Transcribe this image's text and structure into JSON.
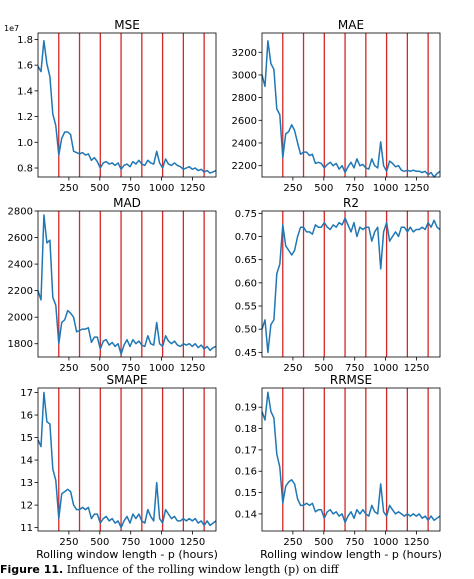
{
  "figure": {
    "top_partial_text": "",
    "caption_label": "Figure 11.",
    "caption_text": " Influence of the rolling window length (p) on diff"
  },
  "chart_data": [
    {
      "type": "line",
      "title": "MSE",
      "xlabel": "",
      "ylabel": "",
      "offset_text": "1e7",
      "y_scale": 10000000,
      "xlim": [
        0,
        1440
      ],
      "ylim": [
        7300000,
        18500000
      ],
      "x_ticks": [
        250,
        500,
        750,
        1000,
        1250
      ],
      "y_ticks": [
        8000000,
        10000000,
        12000000,
        14000000,
        16000000,
        18000000
      ],
      "y_tick_labels": [
        "0.8",
        "1.0",
        "1.2",
        "1.4",
        "1.6",
        "1.8"
      ],
      "vlines": [
        168,
        336,
        504,
        672,
        840,
        1008,
        1176,
        1344
      ],
      "series": [
        {
          "x": [
            0,
            24,
            48,
            72,
            96,
            120,
            144,
            168,
            192,
            216,
            240,
            264,
            288,
            312,
            336,
            360,
            384,
            408,
            432,
            456,
            480,
            504,
            528,
            552,
            576,
            600,
            624,
            648,
            672,
            696,
            720,
            744,
            768,
            792,
            816,
            840,
            864,
            888,
            912,
            936,
            960,
            984,
            1008,
            1032,
            1056,
            1080,
            1104,
            1128,
            1152,
            1176,
            1200,
            1224,
            1248,
            1272,
            1296,
            1320,
            1344,
            1368,
            1392,
            1416,
            1440
          ],
          "y": [
            15900000,
            15500000,
            17900000,
            16100000,
            15100000,
            12200000,
            11300000,
            9000000,
            10300000,
            10800000,
            10800000,
            10600000,
            9300000,
            9200000,
            9100000,
            9200000,
            9000000,
            9100000,
            8600000,
            8800000,
            8500000,
            8000000,
            8400000,
            8500000,
            8300000,
            8400000,
            8200000,
            8400000,
            7900000,
            8200000,
            8300000,
            8100000,
            8500000,
            8300000,
            8600000,
            8300000,
            8200000,
            8600000,
            8400000,
            8300000,
            9300000,
            8400000,
            8000000,
            8700000,
            8300000,
            8200000,
            8400000,
            8200000,
            8100000,
            7900000,
            8000000,
            8100000,
            7900000,
            8000000,
            7800000,
            7900000,
            7700000,
            7800000,
            7600000,
            7700000,
            7800000
          ]
        }
      ]
    },
    {
      "type": "line",
      "title": "MAE",
      "xlabel": "",
      "ylabel": "",
      "xlim": [
        0,
        1440
      ],
      "ylim": [
        2100,
        3370
      ],
      "x_ticks": [
        250,
        500,
        750,
        1000,
        1250
      ],
      "y_ticks": [
        2200,
        2400,
        2600,
        2800,
        3000,
        3200
      ],
      "y_tick_labels": [
        "2200",
        "2400",
        "2600",
        "2800",
        "3000",
        "3200"
      ],
      "vlines": [
        168,
        336,
        504,
        672,
        840,
        1008,
        1176,
        1344
      ],
      "series": [
        {
          "x": [
            0,
            24,
            48,
            72,
            96,
            120,
            144,
            168,
            192,
            216,
            240,
            264,
            288,
            312,
            336,
            360,
            384,
            408,
            432,
            456,
            480,
            504,
            528,
            552,
            576,
            600,
            624,
            648,
            672,
            696,
            720,
            744,
            768,
            792,
            816,
            840,
            864,
            888,
            912,
            936,
            960,
            984,
            1008,
            1032,
            1056,
            1080,
            1104,
            1128,
            1152,
            1176,
            1200,
            1224,
            1248,
            1272,
            1296,
            1320,
            1344,
            1368,
            1392,
            1416,
            1440
          ],
          "y": [
            3000,
            2900,
            3300,
            3100,
            3050,
            2700,
            2650,
            2270,
            2480,
            2500,
            2560,
            2510,
            2400,
            2300,
            2320,
            2320,
            2290,
            2300,
            2220,
            2230,
            2220,
            2180,
            2210,
            2230,
            2200,
            2220,
            2170,
            2200,
            2140,
            2190,
            2230,
            2180,
            2260,
            2200,
            2210,
            2180,
            2170,
            2260,
            2200,
            2180,
            2410,
            2200,
            2150,
            2240,
            2220,
            2190,
            2200,
            2160,
            2150,
            2160,
            2150,
            2160,
            2150,
            2150,
            2140,
            2150,
            2120,
            2140,
            2100,
            2130,
            2150
          ]
        }
      ]
    },
    {
      "type": "line",
      "title": "MAD",
      "xlabel": "",
      "ylabel": "",
      "xlim": [
        0,
        1440
      ],
      "ylim": [
        1700,
        2800
      ],
      "x_ticks": [
        250,
        500,
        750,
        1000,
        1250
      ],
      "y_ticks": [
        1800,
        2000,
        2200,
        2400,
        2600,
        2800
      ],
      "y_tick_labels": [
        "1800",
        "2000",
        "2200",
        "2400",
        "2600",
        "2800"
      ],
      "vlines": [
        168,
        336,
        504,
        672,
        840,
        1008,
        1176,
        1344
      ],
      "series": [
        {
          "x": [
            0,
            24,
            48,
            72,
            96,
            120,
            144,
            168,
            192,
            216,
            240,
            264,
            288,
            312,
            336,
            360,
            384,
            408,
            432,
            456,
            480,
            504,
            528,
            552,
            576,
            600,
            624,
            648,
            672,
            696,
            720,
            744,
            768,
            792,
            816,
            840,
            864,
            888,
            912,
            936,
            960,
            984,
            1008,
            1032,
            1056,
            1080,
            1104,
            1128,
            1152,
            1176,
            1200,
            1224,
            1248,
            1272,
            1296,
            1320,
            1344,
            1368,
            1392,
            1416,
            1440
          ],
          "y": [
            2200,
            2130,
            2770,
            2560,
            2580,
            2150,
            2090,
            1800,
            1960,
            1980,
            2050,
            2030,
            2000,
            1890,
            1900,
            1910,
            1910,
            1920,
            1810,
            1850,
            1850,
            1760,
            1820,
            1830,
            1790,
            1810,
            1780,
            1800,
            1720,
            1790,
            1830,
            1780,
            1830,
            1800,
            1820,
            1790,
            1780,
            1860,
            1800,
            1790,
            1960,
            1800,
            1780,
            1860,
            1820,
            1800,
            1820,
            1790,
            1780,
            1800,
            1790,
            1800,
            1780,
            1800,
            1770,
            1790,
            1760,
            1780,
            1750,
            1770,
            1780
          ]
        }
      ]
    },
    {
      "type": "line",
      "title": "R2",
      "xlabel": "",
      "ylabel": "",
      "xlim": [
        0,
        1440
      ],
      "ylim": [
        0.44,
        0.755
      ],
      "x_ticks": [
        250,
        500,
        750,
        1000,
        1250
      ],
      "y_ticks": [
        0.45,
        0.5,
        0.55,
        0.6,
        0.65,
        0.7,
        0.75
      ],
      "y_tick_labels": [
        "0.45",
        "0.50",
        "0.55",
        "0.60",
        "0.65",
        "0.70",
        "0.75"
      ],
      "vlines": [
        168,
        336,
        504,
        672,
        840,
        1008,
        1176,
        1344
      ],
      "series": [
        {
          "x": [
            0,
            24,
            48,
            72,
            96,
            120,
            144,
            168,
            192,
            216,
            240,
            264,
            288,
            312,
            336,
            360,
            384,
            408,
            432,
            456,
            480,
            504,
            528,
            552,
            576,
            600,
            624,
            648,
            672,
            696,
            720,
            744,
            768,
            792,
            816,
            840,
            864,
            888,
            912,
            936,
            960,
            984,
            1008,
            1032,
            1056,
            1080,
            1104,
            1128,
            1152,
            1176,
            1200,
            1224,
            1248,
            1272,
            1296,
            1320,
            1344,
            1368,
            1392,
            1416,
            1440
          ],
          "y": [
            0.5,
            0.52,
            0.45,
            0.51,
            0.52,
            0.62,
            0.64,
            0.725,
            0.68,
            0.67,
            0.66,
            0.67,
            0.7,
            0.72,
            0.72,
            0.71,
            0.71,
            0.705,
            0.725,
            0.72,
            0.72,
            0.73,
            0.72,
            0.715,
            0.725,
            0.72,
            0.73,
            0.725,
            0.74,
            0.725,
            0.71,
            0.73,
            0.7,
            0.72,
            0.715,
            0.72,
            0.72,
            0.69,
            0.71,
            0.72,
            0.63,
            0.71,
            0.73,
            0.69,
            0.7,
            0.71,
            0.7,
            0.72,
            0.72,
            0.71,
            0.72,
            0.71,
            0.715,
            0.715,
            0.72,
            0.715,
            0.73,
            0.72,
            0.735,
            0.72,
            0.715
          ]
        }
      ]
    },
    {
      "type": "line",
      "title": "SMAPE",
      "xlabel": "Rolling window length - p (hours)",
      "ylabel": "",
      "xlim": [
        0,
        1440
      ],
      "ylim": [
        10.85,
        17.2
      ],
      "x_ticks": [
        250,
        500,
        750,
        1000,
        1250
      ],
      "y_ticks": [
        11,
        12,
        13,
        14,
        15,
        16,
        17
      ],
      "y_tick_labels": [
        "11",
        "12",
        "13",
        "14",
        "15",
        "16",
        "17"
      ],
      "vlines": [
        168,
        336,
        504,
        672,
        840,
        1008,
        1176,
        1344
      ],
      "series": [
        {
          "x": [
            0,
            24,
            48,
            72,
            96,
            120,
            144,
            168,
            192,
            216,
            240,
            264,
            288,
            312,
            336,
            360,
            384,
            408,
            432,
            456,
            480,
            504,
            528,
            552,
            576,
            600,
            624,
            648,
            672,
            696,
            720,
            744,
            768,
            792,
            816,
            840,
            864,
            888,
            912,
            936,
            960,
            984,
            1008,
            1032,
            1056,
            1080,
            1104,
            1128,
            1152,
            1176,
            1200,
            1224,
            1248,
            1272,
            1296,
            1320,
            1344,
            1368,
            1392,
            1416,
            1440
          ],
          "y": [
            14.9,
            14.6,
            17.0,
            15.7,
            15.6,
            13.6,
            13.1,
            11.4,
            12.5,
            12.6,
            12.7,
            12.6,
            12.0,
            11.8,
            11.8,
            11.9,
            11.8,
            11.9,
            11.4,
            11.6,
            11.6,
            11.2,
            11.4,
            11.5,
            11.3,
            11.4,
            11.2,
            11.3,
            11.0,
            11.3,
            11.5,
            11.2,
            11.6,
            11.4,
            11.6,
            11.3,
            11.2,
            11.8,
            11.5,
            11.3,
            13.0,
            11.4,
            11.2,
            11.8,
            11.6,
            11.4,
            11.5,
            11.3,
            11.3,
            11.4,
            11.3,
            11.4,
            11.3,
            11.4,
            11.2,
            11.3,
            11.1,
            11.3,
            11.1,
            11.2,
            11.3
          ]
        }
      ]
    },
    {
      "type": "line",
      "title": "RRMSE",
      "xlabel": "Rolling window length - p (hours)",
      "ylabel": "",
      "xlim": [
        0,
        1440
      ],
      "ylim": [
        0.132,
        0.199
      ],
      "x_ticks": [
        250,
        500,
        750,
        1000,
        1250
      ],
      "y_ticks": [
        0.14,
        0.15,
        0.16,
        0.17,
        0.18,
        0.19
      ],
      "y_tick_labels": [
        "0.14",
        "0.15",
        "0.16",
        "0.17",
        "0.18",
        "0.19"
      ],
      "vlines": [
        168,
        336,
        504,
        672,
        840,
        1008,
        1176,
        1344
      ],
      "series": [
        {
          "x": [
            0,
            24,
            48,
            72,
            96,
            120,
            144,
            168,
            192,
            216,
            240,
            264,
            288,
            312,
            336,
            360,
            384,
            408,
            432,
            456,
            480,
            504,
            528,
            552,
            576,
            600,
            624,
            648,
            672,
            696,
            720,
            744,
            768,
            792,
            816,
            840,
            864,
            888,
            912,
            936,
            960,
            984,
            1008,
            1032,
            1056,
            1080,
            1104,
            1128,
            1152,
            1176,
            1200,
            1224,
            1248,
            1272,
            1296,
            1320,
            1344,
            1368,
            1392,
            1416,
            1440
          ],
          "y": [
            0.188,
            0.184,
            0.197,
            0.188,
            0.185,
            0.168,
            0.162,
            0.145,
            0.153,
            0.155,
            0.156,
            0.154,
            0.147,
            0.144,
            0.144,
            0.145,
            0.144,
            0.145,
            0.141,
            0.142,
            0.142,
            0.138,
            0.141,
            0.142,
            0.14,
            0.141,
            0.139,
            0.14,
            0.136,
            0.139,
            0.141,
            0.138,
            0.142,
            0.14,
            0.142,
            0.14,
            0.139,
            0.144,
            0.141,
            0.14,
            0.154,
            0.141,
            0.139,
            0.144,
            0.142,
            0.14,
            0.141,
            0.14,
            0.139,
            0.14,
            0.139,
            0.14,
            0.139,
            0.14,
            0.138,
            0.139,
            0.137,
            0.139,
            0.137,
            0.138,
            0.139
          ]
        }
      ]
    }
  ]
}
